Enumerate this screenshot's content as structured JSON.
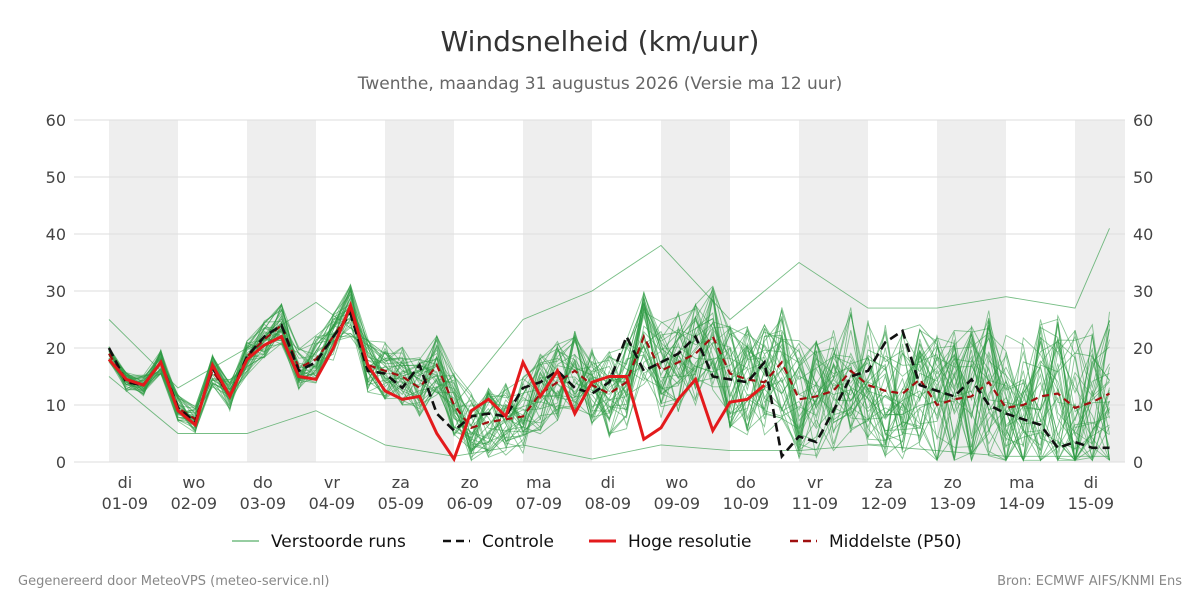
{
  "chart_data": {
    "type": "line",
    "title": "Windsnelheid (km/uur)",
    "subtitle": "Twenthe, maandag 31 augustus 2026 (Versie ma 12 uur)",
    "ylim": [
      0,
      60
    ],
    "yticks": [
      0,
      10,
      20,
      30,
      40,
      50,
      60
    ],
    "grid": true,
    "legend_position": "bottom-center",
    "x_ticks": [
      {
        "day": "di",
        "date": "01-09"
      },
      {
        "day": "wo",
        "date": "02-09"
      },
      {
        "day": "do",
        "date": "03-09"
      },
      {
        "day": "vr",
        "date": "04-09"
      },
      {
        "day": "za",
        "date": "05-09"
      },
      {
        "day": "zo",
        "date": "06-09"
      },
      {
        "day": "ma",
        "date": "07-09"
      },
      {
        "day": "di",
        "date": "08-09"
      },
      {
        "day": "wo",
        "date": "09-09"
      },
      {
        "day": "do",
        "date": "10-09"
      },
      {
        "day": "vr",
        "date": "11-09"
      },
      {
        "day": "za",
        "date": "12-09"
      },
      {
        "day": "zo",
        "date": "13-09"
      },
      {
        "day": "ma",
        "date": "14-09"
      },
      {
        "day": "di",
        "date": "15-09"
      }
    ],
    "legend": [
      {
        "label": "Verstoorde runs",
        "style": "thin",
        "color": "#2e9b43"
      },
      {
        "label": "Controle",
        "style": "dashed",
        "color": "#111111"
      },
      {
        "label": "Hoge resolutie",
        "style": "solid",
        "color": "#e31a1c"
      },
      {
        "label": "Middelste (P50)",
        "style": "dashed",
        "color": "#a01010"
      }
    ],
    "colors": {
      "ensemble": "#2e9b43",
      "control": "#111111",
      "hires": "#e31a1c",
      "median": "#a01010",
      "weekend_band": "#eeeeee",
      "grid": "#dddddd"
    },
    "hires": {
      "x_days": [
        0,
        0.25,
        0.5,
        0.75,
        1,
        1.25,
        1.5,
        1.75,
        2,
        2.25,
        2.5,
        2.75,
        3,
        3.25,
        3.5,
        3.75,
        4,
        4.25,
        4.5,
        4.75,
        5,
        5.25,
        5.5,
        5.75,
        6,
        6.25,
        6.5,
        6.75,
        7,
        7.25,
        7.5,
        7.75,
        8,
        8.25,
        8.5,
        8.75,
        9,
        9.25,
        9.5
      ],
      "values": [
        18,
        14.5,
        13.5,
        17.5,
        9,
        6.5,
        17,
        11.5,
        18,
        20.5,
        22,
        15,
        14.5,
        20,
        27.5,
        17,
        12.5,
        11,
        11.5,
        5,
        0.5,
        9,
        11,
        8,
        17.5,
        11.5,
        16,
        8.5,
        14,
        15,
        15,
        4,
        6,
        11,
        14.5,
        5.5,
        10.5,
        11,
        13.5
      ]
    },
    "control": {
      "x_days": [
        0,
        0.25,
        0.5,
        0.75,
        1,
        1.25,
        1.5,
        1.75,
        2,
        2.25,
        2.5,
        2.75,
        3,
        3.25,
        3.5,
        3.75,
        4,
        4.25,
        4.5,
        4.75,
        5,
        5.25,
        5.5,
        5.75,
        6,
        6.25,
        6.5,
        6.75,
        7,
        7.25,
        7.5,
        7.75,
        8,
        8.25,
        8.5,
        8.75,
        9,
        9.25,
        9.5,
        9.75,
        10,
        10.25,
        10.5,
        10.75,
        11,
        11.25,
        11.5,
        11.75,
        12,
        12.25,
        12.5,
        12.75,
        13,
        13.25,
        13.5,
        13.75,
        14,
        14.25,
        14.5
      ],
      "values": [
        20,
        14,
        13.5,
        17.5,
        9.5,
        7,
        16.5,
        11.5,
        18.5,
        22,
        24,
        16,
        17.5,
        22,
        26,
        16,
        15.5,
        13,
        17,
        8.5,
        5.5,
        8,
        8.5,
        8,
        13,
        14,
        16,
        13,
        12,
        14,
        22,
        16,
        17.5,
        19,
        22,
        15,
        14.5,
        14,
        17.5,
        1,
        4.5,
        3.5,
        9,
        15,
        16,
        21,
        23,
        13.5,
        12.5,
        11.5,
        14.5,
        10,
        8.5,
        7.5,
        6.5,
        2.5,
        3.5,
        2.5,
        2.5
      ]
    },
    "median": {
      "x_days": [
        0,
        0.25,
        0.5,
        0.75,
        1,
        1.25,
        1.5,
        1.75,
        2,
        2.25,
        2.5,
        2.75,
        3,
        3.25,
        3.5,
        3.75,
        4,
        4.25,
        4.5,
        4.75,
        5,
        5.25,
        5.5,
        5.75,
        6,
        6.25,
        6.5,
        6.75,
        7,
        7.25,
        7.5,
        7.75,
        8,
        8.25,
        8.5,
        8.75,
        9,
        9.25,
        9.5,
        9.75,
        10,
        10.25,
        10.5,
        10.75,
        11,
        11.25,
        11.5,
        11.75,
        12,
        12.25,
        12.5,
        12.75,
        13,
        13.25,
        13.5,
        13.75,
        14,
        14.25,
        14.5
      ],
      "values": [
        19,
        14,
        13.5,
        17.5,
        9.5,
        7.5,
        16,
        11.5,
        18.5,
        21.5,
        24,
        16.5,
        18,
        22,
        26.5,
        17,
        16,
        15,
        13,
        17,
        10,
        6,
        7,
        7.5,
        8,
        12,
        14,
        16,
        13.5,
        12,
        14,
        22,
        16,
        17.5,
        19,
        22,
        15.5,
        14.5,
        14,
        17.5,
        11,
        11.5,
        12.5,
        16,
        13.5,
        12.5,
        12,
        14.5,
        10,
        11,
        11.5,
        14,
        9.5,
        10,
        11.5,
        12,
        9.5,
        10.5,
        12
      ]
    },
    "members": [
      {
        "name": "ensemble-spread-high",
        "x_days": [
          0,
          1,
          2,
          3,
          4,
          5,
          6,
          7,
          8,
          9,
          10,
          11,
          12,
          13,
          14,
          14.5
        ],
        "values": [
          25,
          13,
          20,
          28,
          19,
          10,
          25,
          30,
          38,
          25,
          35,
          27,
          27,
          29,
          27,
          41
        ]
      },
      {
        "name": "ensemble-spread-low",
        "x_days": [
          0,
          1,
          2,
          3,
          4,
          5,
          6,
          7,
          8,
          9,
          10,
          11,
          12,
          13,
          14,
          14.5
        ],
        "values": [
          15,
          5,
          5,
          9,
          3,
          1,
          3,
          0.5,
          3,
          2,
          2,
          3,
          2,
          1,
          1,
          1
        ]
      }
    ]
  },
  "footer": {
    "left": "Gegenereerd door MeteoVPS (meteo-service.nl)",
    "right": "Bron: ECMWF AIFS/KNMI Ens"
  }
}
